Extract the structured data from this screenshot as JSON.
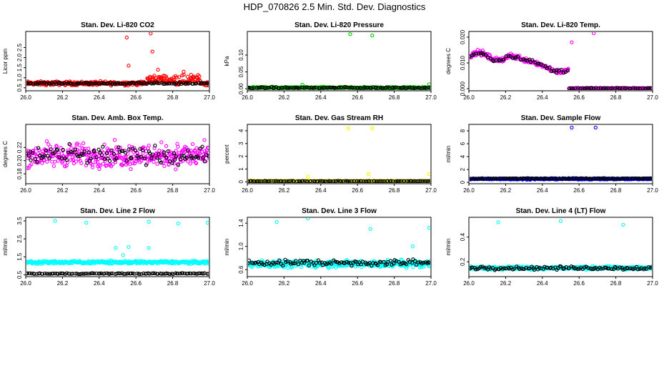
{
  "figure": {
    "title": "HDP_070826  2.5 Min. Std. Dev. Diagnostics"
  },
  "colors": {
    "red": "#ff0000",
    "green": "#00cc00",
    "magenta": "#ff00ff",
    "yellow": "#ffff00",
    "blue": "#0000ff",
    "cyan": "#00ffff",
    "black": "#000000"
  },
  "chart_data": [
    {
      "type": "scatter",
      "title": "Stan. Dev. Li-820 CO2",
      "ylabel": "Licor ppm",
      "xlim": [
        26.0,
        27.0
      ],
      "xticks": [
        "26.0",
        "26.2",
        "26.4",
        "26.6",
        "26.8",
        "27.0"
      ],
      "ylim": [
        0.35,
        3.3
      ],
      "yticks": [
        "0.5",
        "1.0",
        "1.5",
        "2.0",
        "2.5"
      ],
      "ytick_values": [
        0.5,
        1.0,
        1.5,
        2.0,
        2.5
      ],
      "series": [
        {
          "name": "color",
          "color": "red",
          "base": 0.72,
          "spread": 0.14,
          "n": 360,
          "bumps": [
            {
              "x0": 26.66,
              "x1": 26.95,
              "add": 0.35
            }
          ],
          "outliers": [
            [
              26.55,
              3.0
            ],
            [
              26.68,
              3.2
            ],
            [
              26.69,
              2.3
            ],
            [
              26.56,
              1.6
            ],
            [
              26.72,
              1.4
            ],
            [
              26.86,
              1.3
            ],
            [
              26.75,
              1.1
            ],
            [
              26.9,
              1.15
            ]
          ]
        },
        {
          "name": "black",
          "color": "black",
          "base": 0.72,
          "spread": 0.07,
          "n": 110,
          "outliers": []
        }
      ]
    },
    {
      "type": "scatter",
      "title": "Stan. Dev. Li-820 Pressure",
      "ylabel": "kPa",
      "xlim": [
        26.0,
        27.0
      ],
      "xticks": [
        "26.0",
        "26.2",
        "26.4",
        "26.6",
        "26.8",
        "27.0"
      ],
      "ylim": [
        -0.006,
        0.17
      ],
      "yticks": [
        "0.00",
        "0.05",
        "0.10"
      ],
      "ytick_values": [
        0.0,
        0.05,
        0.1
      ],
      "series": [
        {
          "name": "color",
          "color": "green",
          "base": 0.003,
          "spread": 0.004,
          "n": 360,
          "outliers": [
            [
              26.56,
              0.162
            ],
            [
              26.68,
              0.158
            ],
            [
              26.99,
              0.013
            ],
            [
              26.3,
              0.012
            ]
          ]
        },
        {
          "name": "black",
          "color": "black",
          "base": 0.003,
          "spread": 0.003,
          "n": 110,
          "outliers": []
        }
      ]
    },
    {
      "type": "scatter",
      "title": "Stan. Dev. Li-820 Temp.",
      "ylabel": "degrees C",
      "xlim": [
        26.0,
        27.0
      ],
      "xticks": [
        "26.0",
        "26.2",
        "26.4",
        "26.6",
        "26.8",
        "27.0"
      ],
      "ylim": [
        -0.0008,
        0.0222
      ],
      "yticks": [
        "0.000",
        "0.010",
        "0.020"
      ],
      "ytick_values": [
        0.0,
        0.01,
        0.02
      ],
      "series": [
        {
          "name": "color",
          "color": "magenta",
          "shape": "temp",
          "spread": 0.0015,
          "n": 300,
          "outliers": [
            [
              26.68,
              0.0215
            ],
            [
              26.56,
              0.018
            ]
          ]
        },
        {
          "name": "black",
          "color": "black",
          "shape": "temp",
          "spread": 0.001,
          "n": 90,
          "outliers": []
        }
      ]
    },
    {
      "type": "scatter",
      "title": "Stan. Dev. Amb. Box Temp.",
      "ylabel": "degrees C",
      "xlim": [
        26.0,
        27.0
      ],
      "xticks": [
        "26.0",
        "26.2",
        "26.4",
        "26.6",
        "26.8",
        "27.0"
      ],
      "ylim": [
        0.165,
        0.255
      ],
      "yticks": [
        "0.18",
        "0.20",
        "0.22"
      ],
      "ytick_values": [
        0.18,
        0.2,
        0.22
      ],
      "series": [
        {
          "name": "color",
          "color": "magenta",
          "base": 0.208,
          "spread": 0.026,
          "n": 380,
          "outliers": []
        },
        {
          "name": "black",
          "color": "black",
          "base": 0.208,
          "spread": 0.02,
          "n": 110,
          "outliers": []
        }
      ]
    },
    {
      "type": "scatter",
      "title": "Stan. Dev. Gas Stream RH",
      "ylabel": "percent",
      "xlim": [
        26.0,
        27.0
      ],
      "xticks": [
        "26.0",
        "26.2",
        "26.4",
        "26.6",
        "26.8",
        "27.0"
      ],
      "ylim": [
        -0.15,
        4.5
      ],
      "yticks": [
        "0",
        "1",
        "2",
        "3",
        "4"
      ],
      "ytick_values": [
        0,
        1,
        2,
        3,
        4
      ],
      "series": [
        {
          "name": "color",
          "color": "yellow",
          "base": 0.05,
          "spread": 0.04,
          "n": 340,
          "outliers": [
            [
              26.55,
              4.2
            ],
            [
              26.68,
              4.2
            ],
            [
              26.33,
              0.4
            ],
            [
              26.66,
              0.6
            ],
            [
              26.99,
              0.6
            ],
            [
              26.02,
              0.1
            ]
          ]
        },
        {
          "name": "black",
          "color": "black",
          "base": 0.05,
          "spread": 0.03,
          "n": 110,
          "outliers": []
        }
      ]
    },
    {
      "type": "scatter",
      "title": "Stan. Dev. Sample Flow",
      "ylabel": "ml/min",
      "xlim": [
        26.0,
        27.0
      ],
      "xticks": [
        "26.0",
        "26.2",
        "26.4",
        "26.6",
        "26.8",
        "27.0"
      ],
      "ylim": [
        -0.2,
        9.0
      ],
      "yticks": [
        "0",
        "2",
        "4",
        "6",
        "8"
      ],
      "ytick_values": [
        0,
        2,
        4,
        6,
        8
      ],
      "series": [
        {
          "name": "color",
          "color": "blue",
          "base": 0.55,
          "spread": 0.15,
          "n": 360,
          "outliers": [
            [
              26.56,
              8.5
            ],
            [
              26.69,
              8.5
            ]
          ]
        },
        {
          "name": "black",
          "color": "black",
          "base": 0.6,
          "spread": 0.1,
          "n": 110,
          "outliers": []
        }
      ]
    },
    {
      "type": "scatter",
      "title": "Stan. Dev. Line 2 Flow",
      "ylabel": "ml/min",
      "xlim": [
        26.0,
        27.0
      ],
      "xticks": [
        "26.0",
        "26.2",
        "26.4",
        "26.6",
        "26.8",
        "27.0"
      ],
      "ylim": [
        0.4,
        3.7
      ],
      "yticks": [
        "0.5",
        "1.5",
        "2.5",
        "3.5"
      ],
      "ytick_values": [
        0.5,
        1.5,
        2.5,
        3.5
      ],
      "series": [
        {
          "name": "color",
          "color": "cyan",
          "base": 1.2,
          "spread": 0.12,
          "n": 380,
          "outliers": [
            [
              26.16,
              3.5
            ],
            [
              26.33,
              3.4
            ],
            [
              26.67,
              3.45
            ],
            [
              26.83,
              3.35
            ],
            [
              26.99,
              3.4
            ],
            [
              26.49,
              2.0
            ],
            [
              26.56,
              2.05
            ],
            [
              26.67,
              2.0
            ],
            [
              26.53,
              1.6
            ]
          ]
        },
        {
          "name": "black",
          "color": "black",
          "base": 0.57,
          "spread": 0.04,
          "n": 110,
          "outliers": []
        }
      ]
    },
    {
      "type": "scatter",
      "title": "Stan. Dev. Line 3 Flow",
      "ylabel": "ml/min",
      "xlim": [
        26.0,
        27.0
      ],
      "xticks": [
        "26.0",
        "26.2",
        "26.4",
        "26.6",
        "26.8",
        "27.0"
      ],
      "ylim": [
        0.48,
        1.5
      ],
      "yticks": [
        "0.6",
        "1.0",
        "1.4"
      ],
      "ytick_values": [
        0.6,
        1.0,
        1.4
      ],
      "series": [
        {
          "name": "color",
          "color": "cyan",
          "base": 0.7,
          "spread": 0.09,
          "n": 380,
          "outliers": [
            [
              26.16,
              1.42
            ],
            [
              26.33,
              1.48
            ],
            [
              26.67,
              1.3
            ],
            [
              26.99,
              1.32
            ],
            [
              26.9,
              1.0
            ]
          ]
        },
        {
          "name": "black",
          "color": "black",
          "base": 0.72,
          "spread": 0.08,
          "n": 110,
          "outliers": []
        }
      ]
    },
    {
      "type": "scatter",
      "title": "Stan. Dev. Line 4 (LT) Flow",
      "ylabel": "ml/min",
      "xlim": [
        26.0,
        27.0
      ],
      "xticks": [
        "26.0",
        "26.2",
        "26.4",
        "26.6",
        "26.8",
        "27.0"
      ],
      "ylim": [
        0.08,
        0.56
      ],
      "yticks": [
        "0.2",
        "0.4"
      ],
      "ytick_values": [
        0.2,
        0.4
      ],
      "series": [
        {
          "name": "color",
          "color": "cyan",
          "base": 0.15,
          "spread": 0.02,
          "n": 360,
          "outliers": [
            [
              26.16,
              0.52
            ],
            [
              26.5,
              0.53
            ],
            [
              26.84,
              0.5
            ]
          ]
        },
        {
          "name": "black",
          "color": "black",
          "base": 0.15,
          "spread": 0.02,
          "n": 110,
          "outliers": []
        }
      ]
    }
  ]
}
